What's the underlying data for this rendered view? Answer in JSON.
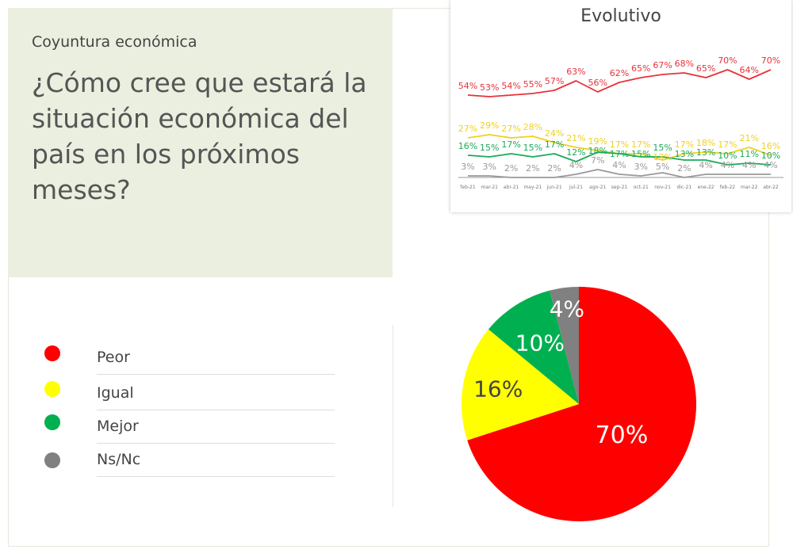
{
  "header": {
    "subtitle": "Coyuntura económica",
    "question": "¿Cómo cree que estará la situación económica del país en los próximos meses?"
  },
  "legend": [
    {
      "label": "Peor",
      "color": "#ff0000"
    },
    {
      "label": "Igual",
      "color": "#ffff00"
    },
    {
      "label": "Mejor",
      "color": "#00b050"
    },
    {
      "label": "Ns/Nc",
      "color": "#808080"
    }
  ],
  "chart_data": [
    {
      "type": "pie",
      "categories": [
        "Peor",
        "Igual",
        "Mejor",
        "Ns/Nc"
      ],
      "values": [
        70,
        16,
        10,
        4
      ],
      "colors": [
        "#ff0000",
        "#ffff00",
        "#00b050",
        "#808080"
      ],
      "labels": [
        "70%",
        "16%",
        "10%",
        "4%"
      ]
    },
    {
      "type": "line",
      "title": "Evolutivo",
      "categories": [
        "feb-21",
        "mar-21",
        "abr-21",
        "may-21",
        "jun-21",
        "jul-21",
        "ago-21",
        "sep-21",
        "oct-21",
        "nov-21",
        "dic-21",
        "ene-22",
        "feb-22",
        "mar-22",
        "abr-22"
      ],
      "series": [
        {
          "name": "Peor",
          "color": "#e8323a",
          "values": [
            54,
            53,
            54,
            55,
            57,
            63,
            56,
            62,
            65,
            67,
            68,
            65,
            70,
            64,
            70
          ]
        },
        {
          "name": "Igual",
          "color": "#f0d020",
          "values": [
            27,
            29,
            27,
            28,
            24,
            21,
            19,
            17,
            17,
            13,
            17,
            18,
            17,
            21,
            16
          ]
        },
        {
          "name": "Mejor",
          "color": "#1aaa5a",
          "values": [
            16,
            15,
            17,
            15,
            17,
            12,
            18,
            17,
            15,
            15,
            13,
            13,
            10,
            11,
            10
          ]
        },
        {
          "name": "Ns/Nc",
          "color": "#999999",
          "values": [
            3,
            3,
            2,
            2,
            2,
            4,
            7,
            4,
            3,
            5,
            2,
            4,
            4,
            4,
            4
          ]
        }
      ]
    }
  ]
}
